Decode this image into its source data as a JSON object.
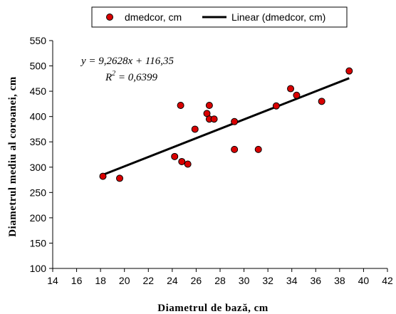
{
  "chart_data": {
    "type": "scatter",
    "xlabel": "Diametrul de bază, cm",
    "ylabel": "Diametrul mediu al coroanei, cm",
    "xlim": [
      14,
      42
    ],
    "ylim": [
      100,
      550
    ],
    "xticks": [
      14,
      16,
      18,
      20,
      22,
      24,
      26,
      28,
      30,
      32,
      34,
      36,
      38,
      40,
      42
    ],
    "yticks": [
      100,
      150,
      200,
      250,
      300,
      350,
      400,
      450,
      500,
      550
    ],
    "grid": false,
    "legend": {
      "placement": "top",
      "entries": [
        "dmedcor, cm",
        "Linear (dmedcor, cm)"
      ]
    },
    "series": [
      {
        "name": "dmedcor, cm",
        "marker": "circle",
        "color": "#d90000",
        "points": [
          {
            "x": 18.2,
            "y": 282
          },
          {
            "x": 19.6,
            "y": 278
          },
          {
            "x": 24.2,
            "y": 321
          },
          {
            "x": 24.8,
            "y": 311
          },
          {
            "x": 25.3,
            "y": 306
          },
          {
            "x": 24.7,
            "y": 422
          },
          {
            "x": 25.9,
            "y": 375
          },
          {
            "x": 26.9,
            "y": 406
          },
          {
            "x": 27.1,
            "y": 422
          },
          {
            "x": 27.1,
            "y": 395
          },
          {
            "x": 27.5,
            "y": 395
          },
          {
            "x": 29.2,
            "y": 390
          },
          {
            "x": 29.2,
            "y": 335
          },
          {
            "x": 31.2,
            "y": 335
          },
          {
            "x": 32.7,
            "y": 421
          },
          {
            "x": 33.9,
            "y": 455
          },
          {
            "x": 34.4,
            "y": 442
          },
          {
            "x": 36.5,
            "y": 430
          },
          {
            "x": 38.8,
            "y": 490
          }
        ]
      }
    ],
    "trendline": {
      "name": "Linear (dmedcor, cm)",
      "type": "linear",
      "slope": 9.2628,
      "intercept": 116.35,
      "x_range": [
        18.2,
        38.8
      ],
      "equation_text": "y = 9,2628x + 116,35",
      "r2_prefix": "R",
      "r2_sup": "2",
      "r2_value": " = 0,6399"
    }
  }
}
